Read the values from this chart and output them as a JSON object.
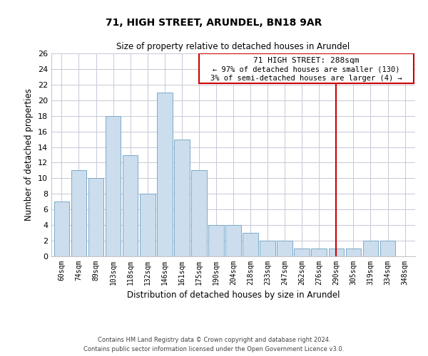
{
  "title": "71, HIGH STREET, ARUNDEL, BN18 9AR",
  "subtitle": "Size of property relative to detached houses in Arundel",
  "xlabel": "Distribution of detached houses by size in Arundel",
  "ylabel": "Number of detached properties",
  "bar_labels": [
    "60sqm",
    "74sqm",
    "89sqm",
    "103sqm",
    "118sqm",
    "132sqm",
    "146sqm",
    "161sqm",
    "175sqm",
    "190sqm",
    "204sqm",
    "218sqm",
    "233sqm",
    "247sqm",
    "262sqm",
    "276sqm",
    "290sqm",
    "305sqm",
    "319sqm",
    "334sqm",
    "348sqm"
  ],
  "bar_values": [
    7,
    11,
    10,
    18,
    13,
    8,
    21,
    15,
    11,
    4,
    4,
    3,
    2,
    2,
    1,
    1,
    1,
    1,
    2,
    2,
    0
  ],
  "bar_color": "#ccdded",
  "bar_edge_color": "#7aaac8",
  "ylim": [
    0,
    26
  ],
  "yticks": [
    0,
    2,
    4,
    6,
    8,
    10,
    12,
    14,
    16,
    18,
    20,
    22,
    24,
    26
  ],
  "vline_index": 16,
  "vline_color": "#cc0000",
  "annotation_title": "71 HIGH STREET: 288sqm",
  "annotation_line1": "← 97% of detached houses are smaller (130)",
  "annotation_line2": "3% of semi-detached houses are larger (4) →",
  "annotation_box_color": "#cc0000",
  "footer_line1": "Contains HM Land Registry data © Crown copyright and database right 2024.",
  "footer_line2": "Contains public sector information licensed under the Open Government Licence v3.0.",
  "background_color": "#ffffff",
  "grid_color": "#c8c8d8"
}
